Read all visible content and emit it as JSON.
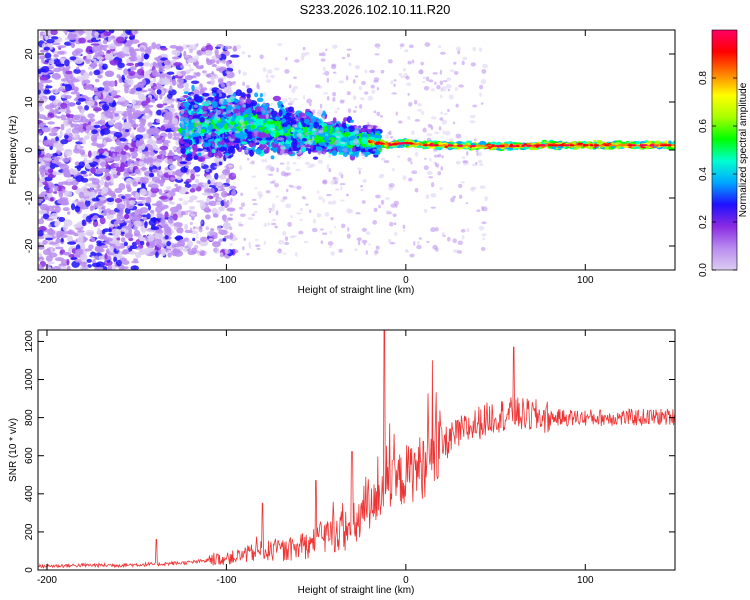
{
  "title": "S233.2026.102.10.11.R20",
  "colors": {
    "line": "#ee3333",
    "axis": "#000000",
    "colorbar": [
      "#dccdf2",
      "#b98cf0",
      "#8a2be2",
      "#1f10ff",
      "#00a6ff",
      "#00ffd0",
      "#00ff00",
      "#a8ff00",
      "#ffff00",
      "#ff8000",
      "#ff0000",
      "#ff0066"
    ]
  },
  "chart_data": [
    {
      "type": "heatmap",
      "name": "spectrogram",
      "xlabel": "Height of straight line (km)",
      "ylabel": "Frequency (Hz)",
      "xlim": [
        -205,
        150
      ],
      "ylim": [
        -25,
        25
      ],
      "xticks": [
        -200,
        -100,
        0,
        100
      ],
      "yticks": [
        -20,
        -10,
        0,
        10,
        20
      ],
      "ridge": {
        "x": [
          -125,
          -110,
          -100,
          -90,
          -80,
          -70,
          -60,
          -50,
          -40,
          -30,
          -20,
          -10,
          0,
          10,
          20,
          40,
          60,
          80,
          100,
          120,
          150
        ],
        "freq": [
          4,
          5,
          5,
          6,
          5,
          4,
          4,
          3,
          3,
          2,
          2,
          1,
          1.5,
          1,
          1,
          0.8,
          0.8,
          1,
          1,
          1,
          1
        ]
      },
      "colorbar": {
        "label": "Normalized spectral amplitude",
        "ticks": [
          0.0,
          0.2,
          0.4,
          0.6,
          0.8
        ],
        "tick_labels": [
          "0.0",
          "0.2",
          "0.4",
          "0.6",
          "0.8"
        ],
        "range": [
          0,
          1
        ]
      }
    },
    {
      "type": "line",
      "name": "snr",
      "xlabel": "Height of straight line (km)",
      "ylabel": "SNR (10 * v/v)",
      "xlim": [
        -205,
        150
      ],
      "ylim": [
        0,
        1260
      ],
      "xticks": [
        -200,
        -100,
        0,
        100
      ],
      "yticks": [
        0,
        200,
        400,
        600,
        800,
        1000,
        1200
      ],
      "trend": {
        "x": [
          -205,
          -180,
          -160,
          -140,
          -120,
          -100,
          -90,
          -80,
          -70,
          -60,
          -50,
          -40,
          -30,
          -20,
          -15,
          -10,
          0,
          10,
          20,
          30,
          40,
          50,
          60,
          70,
          80,
          100,
          120,
          150
        ],
        "y": [
          20,
          25,
          25,
          30,
          40,
          60,
          80,
          100,
          100,
          110,
          150,
          200,
          220,
          330,
          380,
          420,
          500,
          550,
          650,
          720,
          770,
          810,
          820,
          810,
          800,
          800,
          800,
          805
        ]
      },
      "peaks": [
        {
          "x": -139,
          "y": 160
        },
        {
          "x": -80,
          "y": 350
        },
        {
          "x": -50,
          "y": 470
        },
        {
          "x": -30,
          "y": 620
        },
        {
          "x": -12,
          "y": 1260
        },
        {
          "x": 60,
          "y": 1170
        }
      ]
    }
  ]
}
